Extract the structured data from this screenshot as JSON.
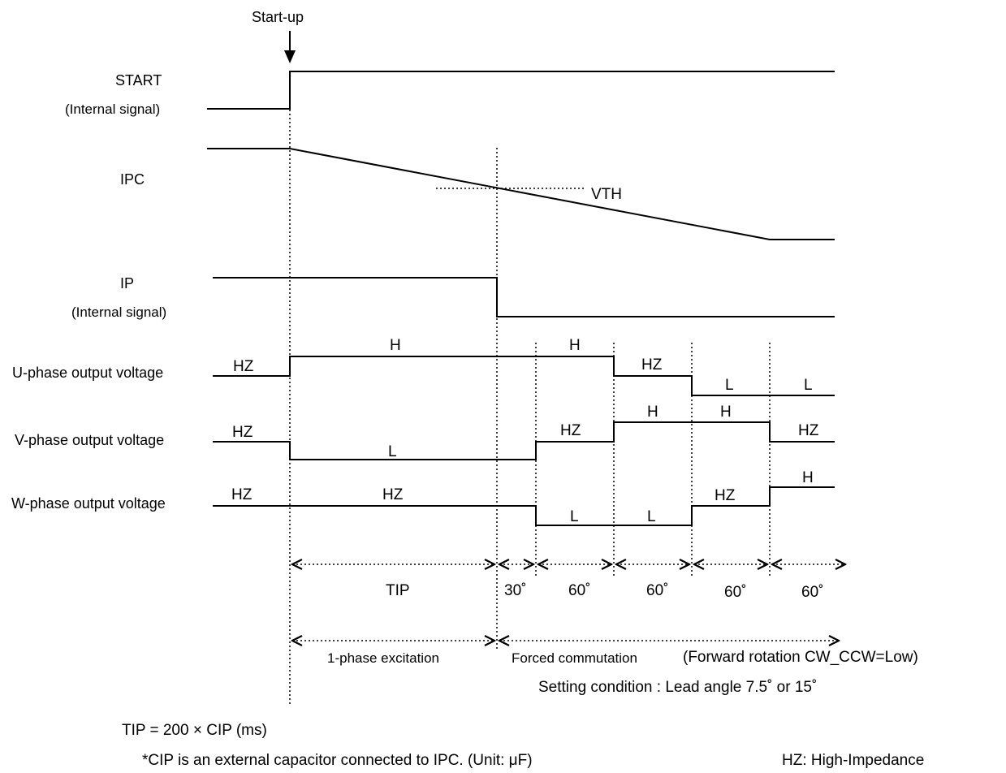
{
  "startup_label": "Start-up",
  "signals": {
    "start": {
      "name": "START",
      "sub": "(Internal signal)"
    },
    "ipc": {
      "name": "IPC",
      "threshold": "VTH"
    },
    "ip": {
      "name": "IP",
      "sub": "(Internal signal)"
    },
    "u": {
      "name": "U-phase output voltage",
      "levels": [
        "HZ",
        "H",
        "H",
        "HZ",
        "L",
        "L"
      ]
    },
    "v": {
      "name": "V-phase output voltage",
      "levels": [
        "HZ",
        "L",
        "HZ",
        "H",
        "H",
        "HZ"
      ]
    },
    "w": {
      "name": "W-phase output voltage",
      "levels": [
        "HZ",
        "HZ",
        "L",
        "L",
        "HZ",
        "H"
      ]
    }
  },
  "intervals": [
    "TIP",
    "30˚",
    "60˚",
    "60˚",
    "60˚",
    "60˚"
  ],
  "phases": {
    "excitation": "1-phase excitation",
    "forced": "Forced commutation",
    "forced_note": "(Forward rotation CW_CCW=Low)",
    "setting": "Setting condition : Lead angle 7.5˚ or 15˚"
  },
  "formula": "TIP = 200 × CIP (ms)",
  "footnote": "*CIP is an external capacitor connected to IPC. (Unit: μF)",
  "hz_note": "HZ: High-Impedance"
}
